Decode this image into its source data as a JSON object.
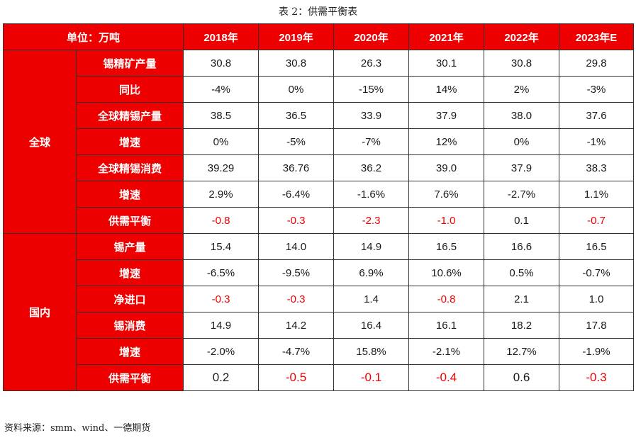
{
  "caption": "表 2：供需平衡表",
  "header": {
    "unit": "单位：万吨",
    "years": [
      "2018年",
      "2019年",
      "2020年",
      "2021年",
      "2022年",
      "2023年E"
    ]
  },
  "groups": [
    {
      "name": "全球",
      "rows": [
        {
          "label": "锡精矿产量",
          "values": [
            "30.8",
            "30.8",
            "26.3",
            "30.1",
            "30.8",
            "29.8"
          ],
          "neg": [
            false,
            false,
            false,
            false,
            false,
            false
          ]
        },
        {
          "label": "同比",
          "values": [
            "-4%",
            "0%",
            "-15%",
            "14%",
            "2%",
            "-3%"
          ],
          "neg": [
            false,
            false,
            false,
            false,
            false,
            false
          ]
        },
        {
          "label": "全球精锡产量",
          "values": [
            "38.5",
            "36.5",
            "33.9",
            "37.9",
            "38.0",
            "37.6"
          ],
          "neg": [
            false,
            false,
            false,
            false,
            false,
            false
          ]
        },
        {
          "label": "增速",
          "values": [
            "0%",
            "-5%",
            "-7%",
            "12%",
            "0%",
            "-1%"
          ],
          "neg": [
            false,
            false,
            false,
            false,
            false,
            false
          ]
        },
        {
          "label": "全球精锡消费",
          "values": [
            "39.29",
            "36.76",
            "36.2",
            "39.0",
            "37.9",
            "38.3"
          ],
          "neg": [
            false,
            false,
            false,
            false,
            false,
            false
          ]
        },
        {
          "label": "增速",
          "values": [
            "2.9%",
            "-6.4%",
            "-1.6%",
            "7.6%",
            "-2.7%",
            "1.1%"
          ],
          "neg": [
            false,
            false,
            false,
            false,
            false,
            false
          ]
        },
        {
          "label": "供需平衡",
          "values": [
            "-0.8",
            "-0.3",
            "-2.3",
            "-1.0",
            "0.1",
            "-0.7"
          ],
          "neg": [
            true,
            true,
            true,
            true,
            false,
            true
          ]
        }
      ]
    },
    {
      "name": "国内",
      "rows": [
        {
          "label": "锡产量",
          "values": [
            "15.4",
            "14.0",
            "14.9",
            "16.5",
            "16.6",
            "16.5"
          ],
          "neg": [
            false,
            false,
            false,
            false,
            false,
            false
          ]
        },
        {
          "label": "增速",
          "values": [
            "-6.5%",
            "-9.5%",
            "6.9%",
            "10.6%",
            "0.5%",
            "-0.7%"
          ],
          "neg": [
            false,
            false,
            false,
            false,
            false,
            false
          ]
        },
        {
          "label": "净进口",
          "values": [
            "-0.3",
            "-0.3",
            "1.4",
            "-0.8",
            "2.1",
            "1.0"
          ],
          "neg": [
            true,
            true,
            false,
            true,
            false,
            false
          ]
        },
        {
          "label": "锡消费",
          "values": [
            "14.9",
            "14.2",
            "16.4",
            "16.1",
            "18.2",
            "17.8"
          ],
          "neg": [
            false,
            false,
            false,
            false,
            false,
            false
          ]
        },
        {
          "label": "增速",
          "values": [
            "-2.0%",
            "-4.7%",
            "15.8%",
            "-2.1%",
            "12.7%",
            "-1.9%"
          ],
          "neg": [
            false,
            false,
            false,
            false,
            false,
            false
          ]
        },
        {
          "label": "供需平衡",
          "values": [
            "0.2",
            "-0.5",
            "-0.1",
            "-0.4",
            "0.6",
            "-0.3"
          ],
          "neg": [
            false,
            true,
            true,
            true,
            false,
            true
          ],
          "large": true
        }
      ]
    }
  ],
  "source": "资料来源：smm、wind、一德期货",
  "colors": {
    "header_bg": "#ee0000",
    "negative_text": "#ee0000"
  }
}
